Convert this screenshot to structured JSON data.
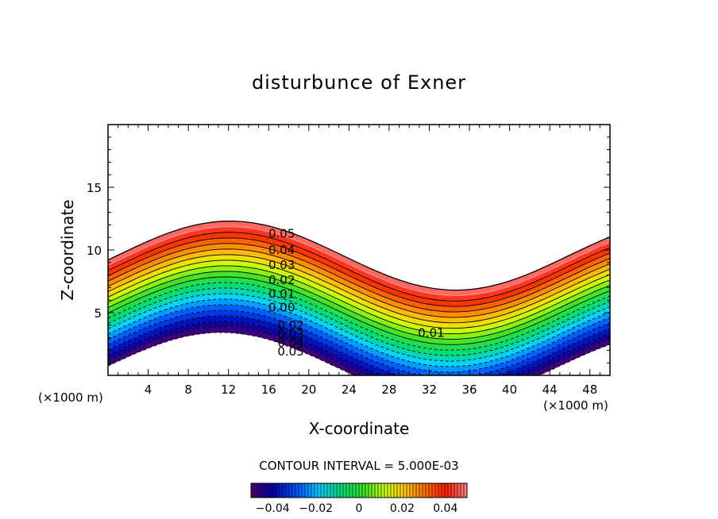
{
  "chart_data": {
    "type": "contour",
    "title": "disturbunce of Exner",
    "xlabel": "X-coordinate",
    "ylabel": "Z-coordinate",
    "x_unit_label": "(×1000 m)",
    "y_unit_label": "(×1000 m)",
    "xlim": [
      0,
      50
    ],
    "ylim": [
      0,
      20
    ],
    "x_ticks": [
      4,
      8,
      12,
      16,
      20,
      24,
      28,
      32,
      36,
      40,
      44,
      48
    ],
    "y_ticks": [
      5,
      10,
      15
    ],
    "contour_interval_text": "CONTOUR INTERVAL = 5.000E-03",
    "contour_interval": 0.005,
    "contour_levels": [
      -0.045,
      -0.04,
      -0.035,
      -0.03,
      -0.025,
      -0.02,
      -0.015,
      -0.01,
      -0.005,
      0,
      0.005,
      0.01,
      0.015,
      0.02,
      0.025,
      0.03,
      0.035,
      0.04,
      0.045,
      0.05
    ],
    "contour_labels": [
      {
        "text": "0.05",
        "x": 17.3,
        "z": 11.3
      },
      {
        "text": "0.04",
        "x": 17.3,
        "z": 10.0
      },
      {
        "text": "0.03",
        "x": 17.3,
        "z": 8.8
      },
      {
        "text": "0.02",
        "x": 17.3,
        "z": 7.6
      },
      {
        "text": "0.01",
        "x": 17.3,
        "z": 6.5
      },
      {
        "text": "0.00",
        "x": 17.3,
        "z": 5.4
      },
      {
        "text": "0.02",
        "x": 18.2,
        "z": 4.0
      },
      {
        "text": "0.03",
        "x": 18.2,
        "z": 3.3
      },
      {
        "text": "0.04",
        "x": 18.2,
        "z": 2.6
      },
      {
        "text": "0.05",
        "x": 18.2,
        "z": 1.9
      },
      {
        "text": "0.01",
        "x": 32.2,
        "z": 3.4
      }
    ],
    "colorbar": {
      "range": [
        -0.05,
        0.05
      ],
      "tick_values": [
        -0.04,
        -0.02,
        0,
        0.02,
        0.04
      ],
      "tick_labels": [
        "−0.04",
        "−0.02",
        "0",
        "0.02",
        "0.04"
      ]
    }
  }
}
